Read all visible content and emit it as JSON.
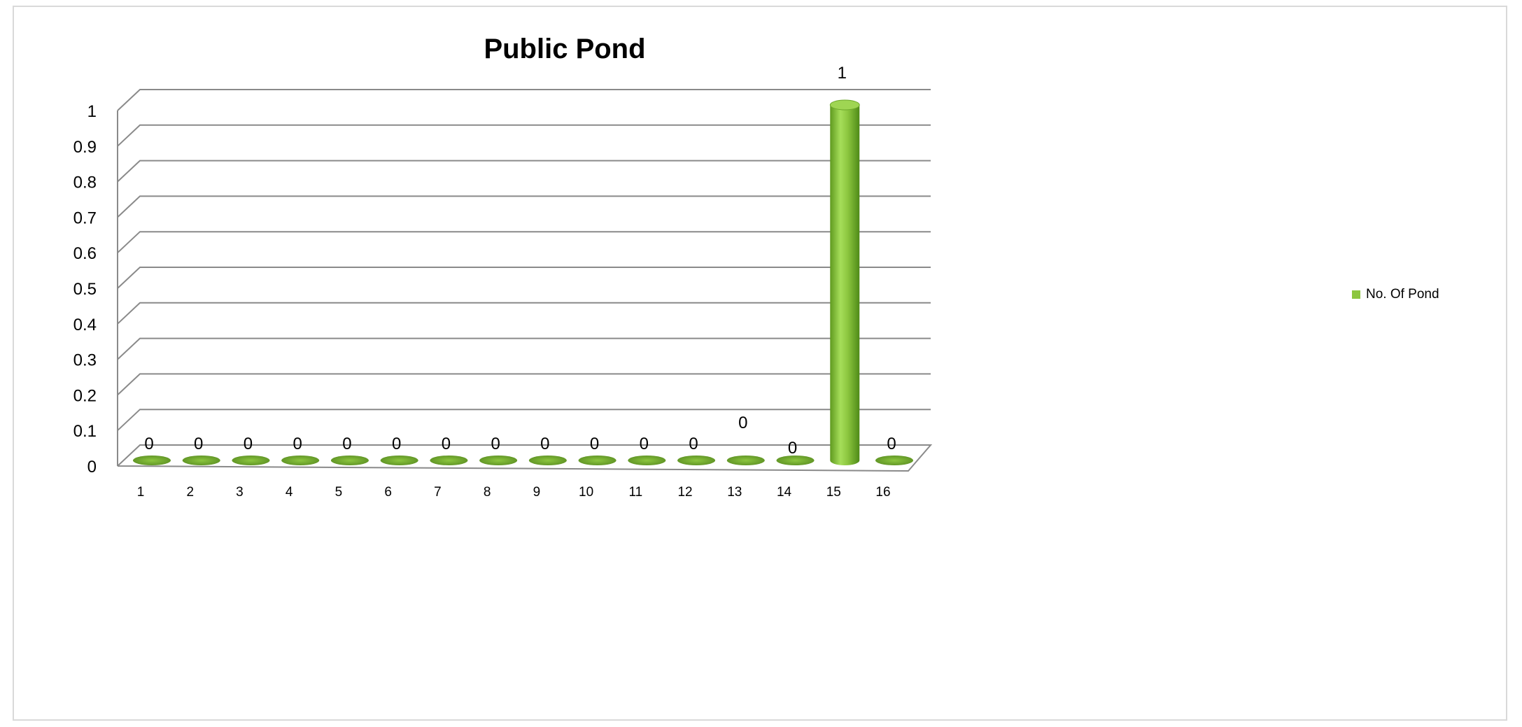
{
  "chart_data": {
    "type": "bar",
    "title": "Public Pond",
    "categories": [
      "1",
      "2",
      "3",
      "4",
      "5",
      "6",
      "7",
      "8",
      "9",
      "10",
      "11",
      "12",
      "13",
      "14",
      "15",
      "16"
    ],
    "series": [
      {
        "name": "No. Of Pond",
        "values": [
          0,
          0,
          0,
          0,
          0,
          0,
          0,
          0,
          0,
          0,
          0,
          0,
          0,
          0,
          1,
          0
        ],
        "color": "#8cc63f"
      }
    ],
    "y_ticks": [
      "0",
      "0.1",
      "0.2",
      "0.3",
      "0.4",
      "0.5",
      "0.6",
      "0.7",
      "0.8",
      "0.9",
      "1"
    ],
    "ylim": [
      0,
      1
    ],
    "grid": true,
    "legend_position": "right",
    "style": "3d-cylinder"
  }
}
